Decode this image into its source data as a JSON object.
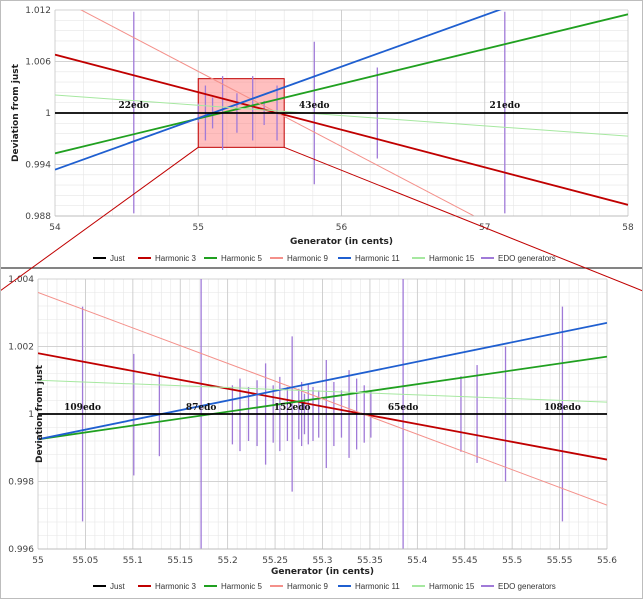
{
  "colors": {
    "just": "#000000",
    "harmonic_3": "#c00000",
    "harmonic_5": "#20a020",
    "harmonic_9": "#f4908a",
    "harmonic_11": "#1f5fd0",
    "harmonic_15": "#a6e8a0",
    "edo": "#a07ad8",
    "zoom_box": "#ff7070"
  },
  "chart_data": [
    {
      "type": "line",
      "xlabel": "Generator (in cents)",
      "ylabel": "Deviation from just",
      "xlim": [
        54,
        58
      ],
      "ylim": [
        0.988,
        1.012
      ],
      "x_ticks": [
        "54",
        "55",
        "56",
        "57",
        "58"
      ],
      "y_ticks": [
        "0.988",
        "0.994",
        "1",
        "1.006",
        "1.012"
      ],
      "grid": true,
      "legend_position": "bottom",
      "series": [
        {
          "name": "Just",
          "color_key": "just",
          "x": [
            54,
            58
          ],
          "y": [
            1,
            1
          ]
        },
        {
          "name": "Harmonic 3",
          "color_key": "harmonic_3",
          "x": [
            54,
            58
          ],
          "y": [
            1.0068,
            0.9893
          ]
        },
        {
          "name": "Harmonic 5",
          "color_key": "harmonic_5",
          "x": [
            54,
            58
          ],
          "y": [
            0.9953,
            1.0115
          ]
        },
        {
          "name": "Harmonic 9",
          "color_key": "harmonic_9",
          "x": [
            54,
            58
          ],
          "y": [
            1.0136,
            0.9786
          ]
        },
        {
          "name": "Harmonic 11",
          "color_key": "harmonic_11",
          "x": [
            54,
            58
          ],
          "y": [
            0.9934,
            1.0174
          ]
        },
        {
          "name": "Harmonic 15",
          "color_key": "harmonic_15",
          "x": [
            54,
            58
          ],
          "y": [
            1.0021,
            0.9973
          ]
        }
      ],
      "edo_generators": [
        {
          "x": 54.55,
          "low": 0.9883,
          "high": 1.0118
        },
        {
          "x": 55.0,
          "low": 0.9989,
          "high": 1.0011
        },
        {
          "x": 55.05,
          "low": 0.9968,
          "high": 1.0032
        },
        {
          "x": 55.1,
          "low": 0.9982,
          "high": 1.0018
        },
        {
          "x": 55.17,
          "low": 0.9957,
          "high": 1.0043
        },
        {
          "x": 55.27,
          "low": 0.9977,
          "high": 1.0023
        },
        {
          "x": 55.38,
          "low": 0.9968,
          "high": 1.0043
        },
        {
          "x": 55.46,
          "low": 0.9986,
          "high": 1.0014
        },
        {
          "x": 55.55,
          "low": 0.9968,
          "high": 1.0032
        },
        {
          "x": 55.81,
          "low": 0.9917,
          "high": 1.0083
        },
        {
          "x": 56.25,
          "low": 0.9947,
          "high": 1.0053
        },
        {
          "x": 57.14,
          "low": 0.9883,
          "high": 1.0118
        }
      ],
      "zoom_box": {
        "x": [
          55,
          55.6
        ],
        "y": [
          0.996,
          1.004
        ]
      },
      "annotations": [
        {
          "text": "22edo",
          "x": 54.55
        },
        {
          "text": "43edo",
          "x": 55.81
        },
        {
          "text": "21edo",
          "x": 57.14
        }
      ]
    },
    {
      "type": "line",
      "xlabel": "Generator (in cents)",
      "ylabel": "Deviation from just",
      "xlim": [
        55,
        55.6
      ],
      "ylim": [
        0.996,
        1.004
      ],
      "x_ticks": [
        "55",
        "55.05",
        "55.1",
        "55.15",
        "55.2",
        "55.25",
        "55.3",
        "55.35",
        "55.4",
        "55.45",
        "55.5",
        "55.55",
        "55.6"
      ],
      "y_ticks": [
        "0.996",
        "0.998",
        "1",
        "1.002",
        "1.004"
      ],
      "grid": true,
      "legend_position": "bottom",
      "series": [
        {
          "name": "Just",
          "color_key": "just",
          "x": [
            55,
            55.6
          ],
          "y": [
            1,
            1
          ]
        },
        {
          "name": "Harmonic 3",
          "color_key": "harmonic_3",
          "x": [
            55,
            55.6
          ],
          "y": [
            1.0018,
            0.99865
          ]
        },
        {
          "name": "Harmonic 5",
          "color_key": "harmonic_5",
          "x": [
            55,
            55.6
          ],
          "y": [
            0.99925,
            1.0017
          ]
        },
        {
          "name": "Harmonic 9",
          "color_key": "harmonic_9",
          "x": [
            55,
            55.6
          ],
          "y": [
            1.0036,
            0.9973
          ]
        },
        {
          "name": "Harmonic 11",
          "color_key": "harmonic_11",
          "x": [
            55,
            55.6
          ],
          "y": [
            0.99925,
            1.0027
          ]
        },
        {
          "name": "Harmonic 15",
          "color_key": "harmonic_15",
          "x": [
            55,
            55.6
          ],
          "y": [
            1.001,
            1.00035
          ]
        }
      ],
      "edo_generators": [
        {
          "x": 55.047,
          "low": 0.99682,
          "high": 1.00318
        },
        {
          "x": 55.101,
          "low": 0.99818,
          "high": 1.00178
        },
        {
          "x": 55.128,
          "low": 0.99875,
          "high": 1.00125
        },
        {
          "x": 55.172,
          "low": 0.996,
          "high": 1.004
        },
        {
          "x": 55.205,
          "low": 0.9991,
          "high": 1.00085
        },
        {
          "x": 55.213,
          "low": 0.9989,
          "high": 1.00105
        },
        {
          "x": 55.222,
          "low": 0.9992,
          "high": 1.0008
        },
        {
          "x": 55.231,
          "low": 0.99905,
          "high": 1.001
        },
        {
          "x": 55.24,
          "low": 0.9985,
          "high": 1.0015
        },
        {
          "x": 55.248,
          "low": 0.99915,
          "high": 1.00085
        },
        {
          "x": 55.255,
          "low": 0.9989,
          "high": 1.0011
        },
        {
          "x": 55.263,
          "low": 0.9992,
          "high": 1.0008
        },
        {
          "x": 55.268,
          "low": 0.9977,
          "high": 1.0023
        },
        {
          "x": 55.275,
          "low": 0.99925,
          "high": 1.00075
        },
        {
          "x": 55.278,
          "low": 0.99905,
          "high": 1.00095
        },
        {
          "x": 55.281,
          "low": 0.9994,
          "high": 1.0006
        },
        {
          "x": 55.285,
          "low": 0.9991,
          "high": 1.0009
        },
        {
          "x": 55.29,
          "low": 0.9992,
          "high": 1.0008
        },
        {
          "x": 55.296,
          "low": 0.9993,
          "high": 1.0007
        },
        {
          "x": 55.304,
          "low": 0.9984,
          "high": 1.0016
        },
        {
          "x": 55.312,
          "low": 0.99905,
          "high": 1.00095
        },
        {
          "x": 55.32,
          "low": 0.9993,
          "high": 1.0007
        },
        {
          "x": 55.328,
          "low": 0.9987,
          "high": 1.0013
        },
        {
          "x": 55.336,
          "low": 0.99895,
          "high": 1.00105
        },
        {
          "x": 55.344,
          "low": 0.99915,
          "high": 1.00085
        },
        {
          "x": 55.351,
          "low": 0.9993,
          "high": 1.0007
        },
        {
          "x": 55.385,
          "low": 0.996,
          "high": 1.004
        },
        {
          "x": 55.446,
          "low": 0.99888,
          "high": 1.00112
        },
        {
          "x": 55.463,
          "low": 0.99855,
          "high": 1.00145
        },
        {
          "x": 55.493,
          "low": 0.998,
          "high": 1.002
        },
        {
          "x": 55.553,
          "low": 0.99682,
          "high": 1.00318
        }
      ],
      "annotations": [
        {
          "text": "109edo",
          "x": 55.047
        },
        {
          "text": "87edo",
          "x": 55.172
        },
        {
          "text": "152edo",
          "x": 55.268
        },
        {
          "text": "65edo",
          "x": 55.385
        },
        {
          "text": "108edo",
          "x": 55.553
        }
      ]
    }
  ]
}
